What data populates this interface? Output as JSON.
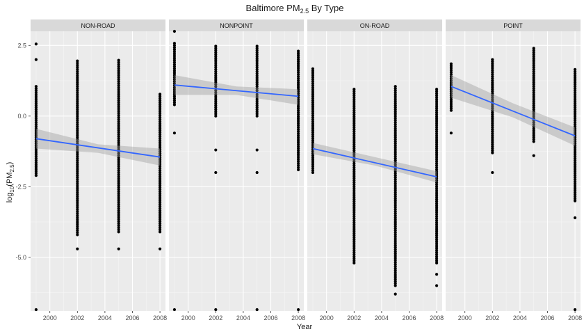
{
  "chart_data": {
    "type": "scatter",
    "title_parts": [
      "Baltimore PM",
      "2.5",
      " By Type"
    ],
    "xlabel": "Year",
    "ylabel_parts": [
      "log",
      "10",
      "(PM",
      "2.5",
      ")"
    ],
    "xlim": [
      1998.6,
      2008.4
    ],
    "ylim": [
      -6.9,
      3.0
    ],
    "xticks": [
      2000,
      2002,
      2004,
      2006,
      2008
    ],
    "yticks": [
      2.5,
      0.0,
      -2.5,
      -5.0
    ],
    "ytick_labels": [
      "2.5",
      "0.0",
      "-2.5",
      "-5.0"
    ],
    "facets": [
      "NON-ROAD",
      "NONPOINT",
      "ON-ROAD",
      "POINT"
    ],
    "grid": true,
    "point_color": "#000000",
    "smooth_color": "#3366ff",
    "band_color": "#999999",
    "panel_bg": "#ebebeb",
    "strip_bg": "#d9d9d9",
    "panels": [
      {
        "name": "NON-ROAD",
        "trend": {
          "x": [
            1999,
            2008
          ],
          "y": [
            -0.8,
            -1.45
          ]
        },
        "band": {
          "x": [
            1999,
            2003.5,
            2008
          ],
          "lower": [
            -1.15,
            -1.3,
            -1.75
          ],
          "upper": [
            -0.45,
            -1.0,
            -1.15
          ]
        },
        "columns": [
          {
            "x": 1999,
            "ymin": -2.1,
            "ymax": 1.1,
            "extra": [
              2.55,
              2.0,
              -6.85
            ]
          },
          {
            "x": 2002,
            "ymin": -4.2,
            "ymax": 2.0,
            "extra": [
              -4.7
            ]
          },
          {
            "x": 2005,
            "ymin": -4.1,
            "ymax": 2.0,
            "extra": [
              -4.7
            ]
          },
          {
            "x": 2008,
            "ymin": -4.1,
            "ymax": 0.8,
            "extra": [
              -4.7
            ]
          }
        ]
      },
      {
        "name": "NONPOINT",
        "trend": {
          "x": [
            1999,
            2008
          ],
          "y": [
            1.1,
            0.7
          ]
        },
        "band": {
          "x": [
            1999,
            2003.5,
            2008
          ],
          "lower": [
            0.75,
            0.75,
            0.4
          ],
          "upper": [
            1.45,
            1.05,
            0.95
          ]
        },
        "columns": [
          {
            "x": 1999,
            "ymin": 0.4,
            "ymax": 2.6,
            "extra": [
              3.0,
              -0.6,
              -6.85
            ]
          },
          {
            "x": 2002,
            "ymin": 0.0,
            "ymax": 2.5,
            "extra": [
              -1.2,
              -2.0,
              -6.85
            ]
          },
          {
            "x": 2005,
            "ymin": 0.0,
            "ymax": 2.5,
            "extra": [
              -1.2,
              -2.0,
              -6.85
            ]
          },
          {
            "x": 2008,
            "ymin": -1.9,
            "ymax": 2.3,
            "extra": [
              -6.85
            ]
          }
        ]
      },
      {
        "name": "ON-ROAD",
        "trend": {
          "x": [
            1999,
            2008
          ],
          "y": [
            -1.15,
            -2.15
          ]
        },
        "band": {
          "x": [
            1999,
            2003.5,
            2008
          ],
          "lower": [
            -1.35,
            -1.75,
            -2.35
          ],
          "upper": [
            -0.95,
            -1.45,
            -1.95
          ]
        },
        "columns": [
          {
            "x": 1999,
            "ymin": -2.0,
            "ymax": 1.7,
            "extra": []
          },
          {
            "x": 2002,
            "ymin": -5.2,
            "ymax": 1.0,
            "extra": []
          },
          {
            "x": 2005,
            "ymin": -6.0,
            "ymax": 1.1,
            "extra": [
              -6.3
            ]
          },
          {
            "x": 2008,
            "ymin": -5.2,
            "ymax": 1.0,
            "extra": [
              -5.6,
              -6.0
            ]
          }
        ]
      },
      {
        "name": "POINT",
        "trend": {
          "x": [
            1999,
            2008
          ],
          "y": [
            1.05,
            -0.7
          ]
        },
        "band": {
          "x": [
            1999,
            2003.5,
            2008
          ],
          "lower": [
            0.65,
            -0.05,
            -1.05
          ],
          "upper": [
            1.45,
            0.45,
            -0.4
          ]
        },
        "columns": [
          {
            "x": 1999,
            "ymin": 0.2,
            "ymax": 1.9,
            "extra": [
              -0.6
            ]
          },
          {
            "x": 2002,
            "ymin": -1.3,
            "ymax": 2.0,
            "extra": [
              -2.0
            ]
          },
          {
            "x": 2005,
            "ymin": -0.9,
            "ymax": 2.4,
            "extra": [
              -1.4
            ]
          },
          {
            "x": 2008,
            "ymin": -3.0,
            "ymax": 1.7,
            "extra": [
              -3.6,
              -6.85
            ]
          }
        ]
      }
    ]
  }
}
